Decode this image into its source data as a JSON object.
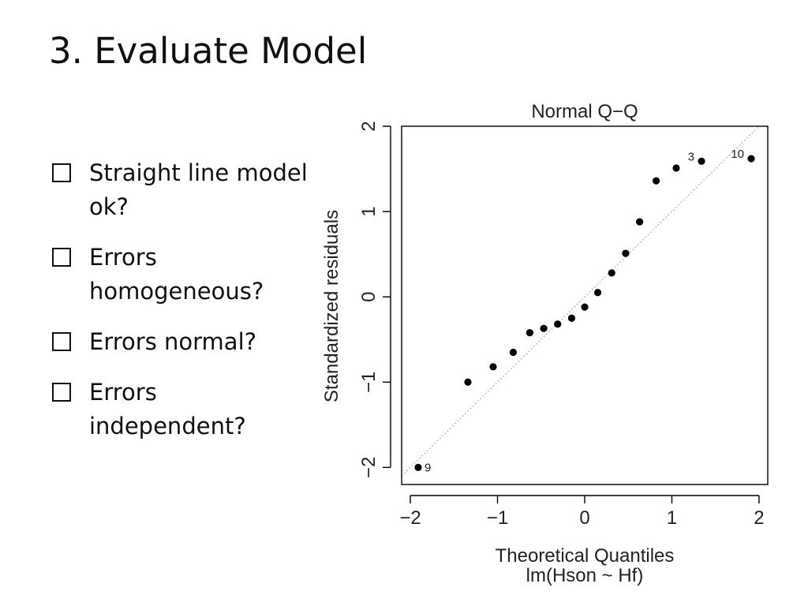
{
  "slide": {
    "title": "3. Evaluate Model"
  },
  "checklist": [
    {
      "text": "Straight line model ok?"
    },
    {
      "text": "Errors homogeneous?"
    },
    {
      "text": "Errors normal?"
    },
    {
      "text": "Errors independent?"
    }
  ],
  "chart_data": {
    "type": "scatter",
    "title": "Normal Q−Q",
    "xlabel": "Theoretical Quantiles",
    "subtitle": "lm(Hson ~ Hf)",
    "ylabel": "Standardized residuals",
    "xlim": [
      -2.1,
      2.1
    ],
    "ylim": [
      -2.2,
      2.0
    ],
    "xticks": [
      -2,
      -1,
      0,
      1,
      2
    ],
    "xtick_labels": [
      "−2",
      "−1",
      "0",
      "1",
      "2"
    ],
    "yticks": [
      -2,
      -1,
      0,
      1,
      2
    ],
    "ytick_labels": [
      "−2",
      "−1",
      "0",
      "1",
      "2"
    ],
    "grid": false,
    "reference_line": {
      "intercept": 0,
      "slope": 1,
      "style": "dotted"
    },
    "points": [
      {
        "x": -1.91,
        "y": -2.0,
        "label": "9"
      },
      {
        "x": -1.34,
        "y": -1.0
      },
      {
        "x": -1.05,
        "y": -0.82
      },
      {
        "x": -0.82,
        "y": -0.65
      },
      {
        "x": -0.63,
        "y": -0.42
      },
      {
        "x": -0.47,
        "y": -0.37
      },
      {
        "x": -0.31,
        "y": -0.32
      },
      {
        "x": -0.15,
        "y": -0.25
      },
      {
        "x": 0.0,
        "y": -0.12
      },
      {
        "x": 0.15,
        "y": 0.05
      },
      {
        "x": 0.31,
        "y": 0.28
      },
      {
        "x": 0.47,
        "y": 0.51
      },
      {
        "x": 0.63,
        "y": 0.88
      },
      {
        "x": 0.82,
        "y": 1.36
      },
      {
        "x": 1.05,
        "y": 1.51
      },
      {
        "x": 1.34,
        "y": 1.59,
        "label": "3"
      },
      {
        "x": 1.91,
        "y": 1.62,
        "label": "10"
      }
    ],
    "colors": {
      "points": "#000000",
      "reference_line": "#9a9a9a",
      "axes": "#000000"
    }
  }
}
